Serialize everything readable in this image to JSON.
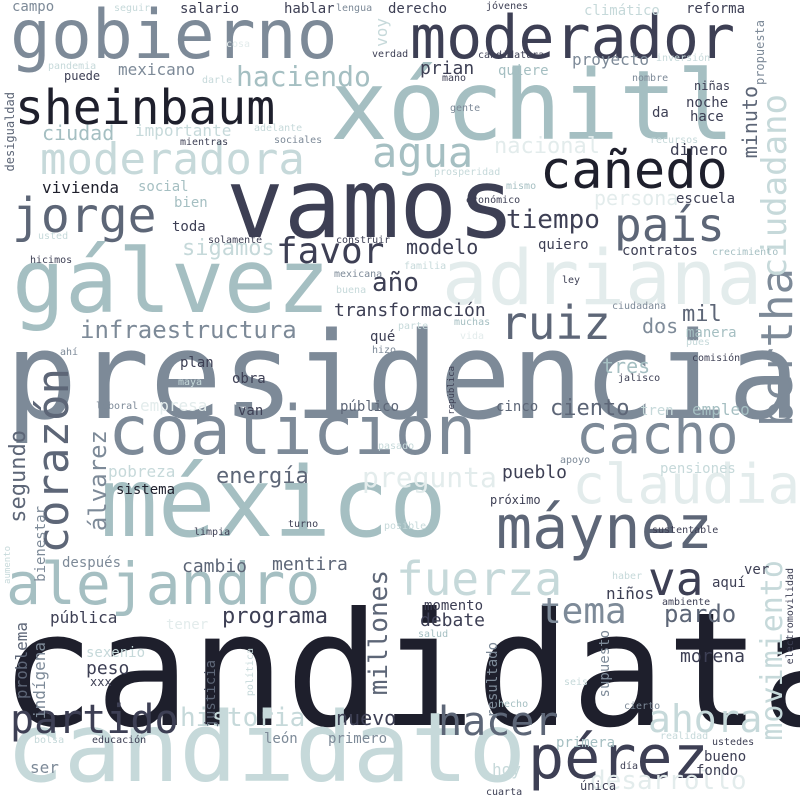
{
  "palette": {
    "darkest": "#1e1f2c",
    "dark": "#3d3f54",
    "slate": "#5d6677",
    "grey": "#7d8a98",
    "teal": "#a5bfc2",
    "light_teal": "#c6d9da",
    "faint": "#e3ecec",
    "background": "#ffffff"
  },
  "words": {
    "candidata": "candidata",
    "presidencia": "presidencia",
    "mexico": "méxico",
    "vamos": "vamos",
    "xochitl": "xóchitl",
    "galvez": "gálvez",
    "candidato": "candidato",
    "coalicion": "coalición",
    "adriana": "adriana",
    "gobierno": "gobierno",
    "moderador": "moderador",
    "maynez": "máynez",
    "perez": "pérez",
    "alejandro": "alejandro",
    "claudia": "claudia",
    "sheinbaum": "sheinbaum",
    "moderadora": "moderadora",
    "canedo": "cañedo",
    "cacho": "cacho",
    "bertha": "bertha",
    "jorge": "jorge",
    "corazon": "corazón",
    "ruiz": "ruiz",
    "fuerza": "fuerza",
    "pais": "país",
    "va": "va",
    "agua": "agua",
    "ciudadano": "ciudadano",
    "partido": "partido",
    "hacer": "hacer",
    "movimiento": "movimiento",
    "ahora": "ahora",
    "haciendo": "haciendo",
    "favor": "favor",
    "tema": "tema",
    "historia": "historia",
    "desarrollo": "desarrollo",
    "alvarez": "álvarez",
    "pregunta": "pregunta",
    "millones": "millones",
    "infraestructura": "infraestructura",
    "tiempo": "tiempo",
    "ano": "año",
    "sigamos": "sigamos",
    "nacional": "nacional",
    "persona": "persona",
    "segundo": "segundo",
    "pardo": "pardo",
    "ciento": "ciento",
    "energia": "energía",
    "programa": "programa",
    "transformacion": "transformación",
    "modelo": "modelo",
    "mentira": "mentira",
    "minuto": "minuto",
    "mil": "mil",
    "dos": "dos",
    "tres": "tres",
    "cambio": "cambio",
    "pueblo": "pueblo",
    "nuevo": "nuevo",
    "debate": "debate",
    "morena": "morena",
    "peso": "peso",
    "vivienda": "vivienda",
    "ciudad": "ciudad",
    "importante": "importante",
    "mexicano": "mexicano",
    "prian": "prian",
    "proyecto": "proyecto",
    "quiere": "quiere",
    "dinero": "dinero",
    "empleo": "empleo",
    "publico": "público",
    "pobreza": "pobreza",
    "empresa": "empresa",
    "bienestar": "bienestar",
    "indigena": "indígena",
    "problema": "problema",
    "publica": "pública",
    "primero": "primero",
    "leon": "león",
    "hoy": "hoy",
    "bueno": "bueno",
    "fondo": "fondo",
    "ser": "ser",
    "despues": "después",
    "sistema": "sistema",
    "justicia": "justicia",
    "resultado": "resultado",
    "supuesto": "supuesto",
    "momento": "momento",
    "ninos": "niños",
    "aqui": "aquí",
    "ver": "ver",
    "primera": "primera",
    "cinco": "cinco",
    "tren": "tren",
    "escuela": "escuela",
    "contratos": "contratos",
    "quiero": "quiero",
    "toda": "toda",
    "bien": "bien",
    "social": "social",
    "obra": "obra",
    "plan": "plan",
    "que": "qué",
    "van": "van",
    "desigualdad": "desigualdad",
    "salario": "salario",
    "hablar": "hablar",
    "derecho": "derecho",
    "reforma": "reforma",
    "puede": "puede",
    "noche": "noche",
    "hace": "hace",
    "ninas": "niñas",
    "da": "da",
    "voy": "voy",
    "jovenes": "jóvenes",
    "candidatura": "candidatura",
    "propuesta": "propuesta",
    "campo": "campo",
    "seguir": "seguir",
    "lengua": "lengua",
    "climatico": "climático",
    "inversion": "inversión",
    "verdad": "verdad",
    "mano": "mano",
    "nombre": "nombre",
    "gente": "gente",
    "pandemia": "pandemia",
    "darle": "darle",
    "cosa": "cosa",
    "adelante": "adelante",
    "mientras": "mientras",
    "sociales": "sociales",
    "recursos": "recursos",
    "prosperidad": "prosperidad",
    "mismo": "mismo",
    "economico": "económico",
    "usted": "usted",
    "construir": "construir",
    "solamente": "solamente",
    "familia": "familia",
    "crecimiento": "crecimiento",
    "hicimos": "hicimos",
    "mexicana": "mexicana",
    "ley": "ley",
    "buena": "buena",
    "ciudadana": "ciudadana",
    "parte": "parte",
    "muchas": "muchas",
    "vida": "vida",
    "manera": "manera",
    "pues": "pues",
    "hizo": "hizo",
    "ahi": "ahí",
    "maya": "maya",
    "comision": "comisión",
    "jalisco": "jalisco",
    "laboral": "laboral",
    "republica": "república",
    "pasado": "pasado",
    "apoyo": "apoyo",
    "pensiones": "pensiones",
    "proximo": "próximo",
    "aumento": "aumento",
    "limpia": "limpia",
    "turno": "turno",
    "posible": "posible",
    "sustentable": "sustentable",
    "haber": "haber",
    "ambiente": "ambiente",
    "electromovilidad": "electromovilidad",
    "tener": "tener",
    "sexenio": "sexenio",
    "xxx": "xxx",
    "politica": "política",
    "salud": "salud",
    "seis": "seis",
    "cierto": "cierto",
    "hecho": "hecho",
    "realidad": "realidad",
    "bolsa": "bolsa",
    "educacion": "educación",
    "ustedes": "ustedes",
    "unica": "única",
    "dia": "día",
    "cuarta": "cuarta"
  }
}
